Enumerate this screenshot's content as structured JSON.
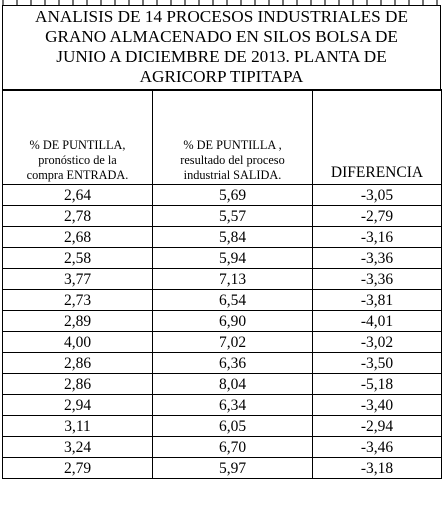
{
  "title_lines": [
    "ANALISIS DE 14 PROCESOS INDUSTRIALES DE",
    "GRANO ALMACENADO EN   SILOS BOLSA  DE",
    "JUNIO A DICIEMBRE DE 2013. PLANTA DE",
    "AGRICORP TIPITAPA"
  ],
  "headers": {
    "col1": [
      "% DE PUNTILLA,",
      "pronóstico de la",
      "compra ENTRADA."
    ],
    "col2": [
      "% DE PUNTILLA ,",
      "resultado del proceso",
      "industrial SALIDA."
    ],
    "col3": "DIFERENCIA"
  },
  "rows": [
    [
      "2,64",
      "5,69",
      "-3,05"
    ],
    [
      "2,78",
      "5,57",
      "-2,79"
    ],
    [
      "2,68",
      "5,84",
      "-3,16"
    ],
    [
      "2,58",
      "5,94",
      "-3,36"
    ],
    [
      "3,77",
      "7,13",
      "-3,36"
    ],
    [
      "2,73",
      "6,54",
      "-3,81"
    ],
    [
      "2,89",
      "6,90",
      "-4,01"
    ],
    [
      "4,00",
      "7,02",
      "-3,02"
    ],
    [
      "2,86",
      "6,36",
      "-3,50"
    ],
    [
      "2,86",
      "8,04",
      "-5,18"
    ],
    [
      "2,94",
      "6,34",
      "-3,40"
    ],
    [
      "3,11",
      "6,05",
      "-2,94"
    ],
    [
      "3,24",
      "6,70",
      "-3,46"
    ],
    [
      "2,79",
      "5,97",
      "-3,18"
    ]
  ]
}
